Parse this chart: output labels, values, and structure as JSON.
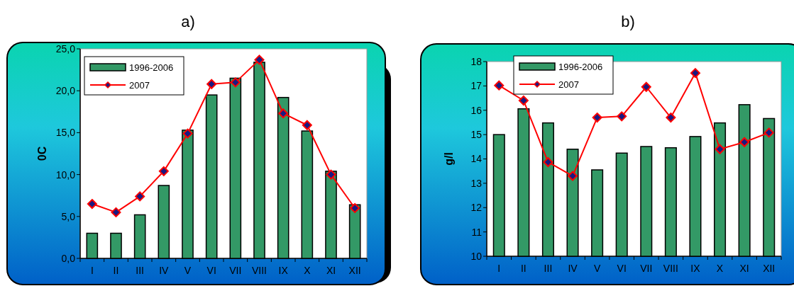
{
  "chart_data": [
    {
      "type": "bar",
      "title": "a)",
      "ylabel": "0C",
      "categories": [
        "I",
        "II",
        "III",
        "IV",
        "V",
        "VI",
        "VII",
        "VIII",
        "IX",
        "X",
        "XI",
        "XII"
      ],
      "ylim": [
        0,
        25
      ],
      "yticks": [
        {
          "value": 0,
          "label": "0,0"
        },
        {
          "value": 5,
          "label": "5,0"
        },
        {
          "value": 10,
          "label": "10,0"
        },
        {
          "value": 15,
          "label": "15,0"
        },
        {
          "value": 20,
          "label": "20,0"
        },
        {
          "value": 25,
          "label": "25,0"
        }
      ],
      "legend": "top left",
      "marker": "diamond",
      "grid": false,
      "series": [
        {
          "name": "1996-2006",
          "color": "#339966",
          "values": [
            3.0,
            3.0,
            5.2,
            8.7,
            15.3,
            19.5,
            21.5,
            23.4,
            19.2,
            15.2,
            10.4,
            6.4
          ]
        },
        {
          "name": "2007",
          "type": "line",
          "color": "#ff0000",
          "values": [
            6.5,
            5.5,
            7.4,
            10.4,
            14.9,
            20.8,
            21.0,
            23.7,
            17.3,
            15.9,
            10.0,
            6.0
          ]
        }
      ]
    },
    {
      "type": "bar",
      "title": "b)",
      "ylabel": "g/l",
      "categories": [
        "I",
        "II",
        "III",
        "IV",
        "V",
        "VI",
        "VII",
        "VIII",
        "IX",
        "X",
        "XI",
        "XII"
      ],
      "ylim": [
        10,
        18
      ],
      "yticks": [
        10,
        11,
        12,
        13,
        14,
        15,
        16,
        17,
        18
      ],
      "legend": "top left",
      "marker": "diamond",
      "grid": false,
      "series": [
        {
          "name": "1996-2006",
          "color": "#339966",
          "values": [
            15.0,
            16.06,
            15.48,
            14.4,
            13.55,
            14.24,
            14.51,
            14.46,
            14.92,
            15.48,
            16.23,
            15.66
          ]
        },
        {
          "name": "2007",
          "type": "line",
          "color": "#ff0000",
          "values": [
            17.02,
            16.4,
            13.87,
            13.3,
            15.7,
            15.75,
            16.96,
            15.7,
            17.53,
            14.4,
            14.69,
            15.08
          ]
        }
      ]
    }
  ]
}
